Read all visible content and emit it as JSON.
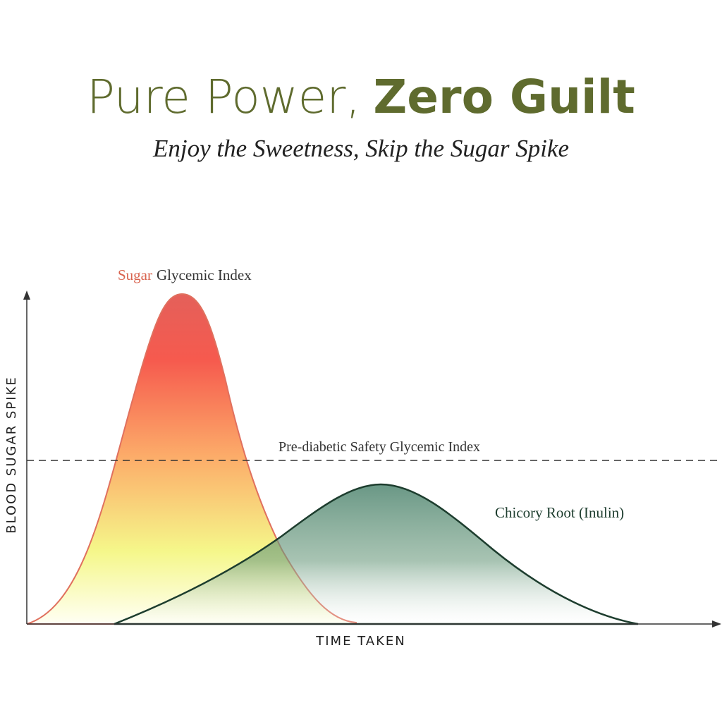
{
  "header": {
    "title_light": "Pure Power,",
    "title_bold": "Zero Guilt",
    "subtitle": "Enjoy the Sweetness, Skip the Sugar Spike"
  },
  "diagram": {
    "sugar_label": {
      "highlight": "Sugar",
      "rest": "Glycemic Index"
    },
    "threshold_label": "Pre-diabetic Safety Glycemic Index",
    "chicory_label": "Chicory Root (Inulin)",
    "y_axis_label": "BLOOD SUGAR SPIKE",
    "x_axis_label": "TIME TAKEN"
  }
}
